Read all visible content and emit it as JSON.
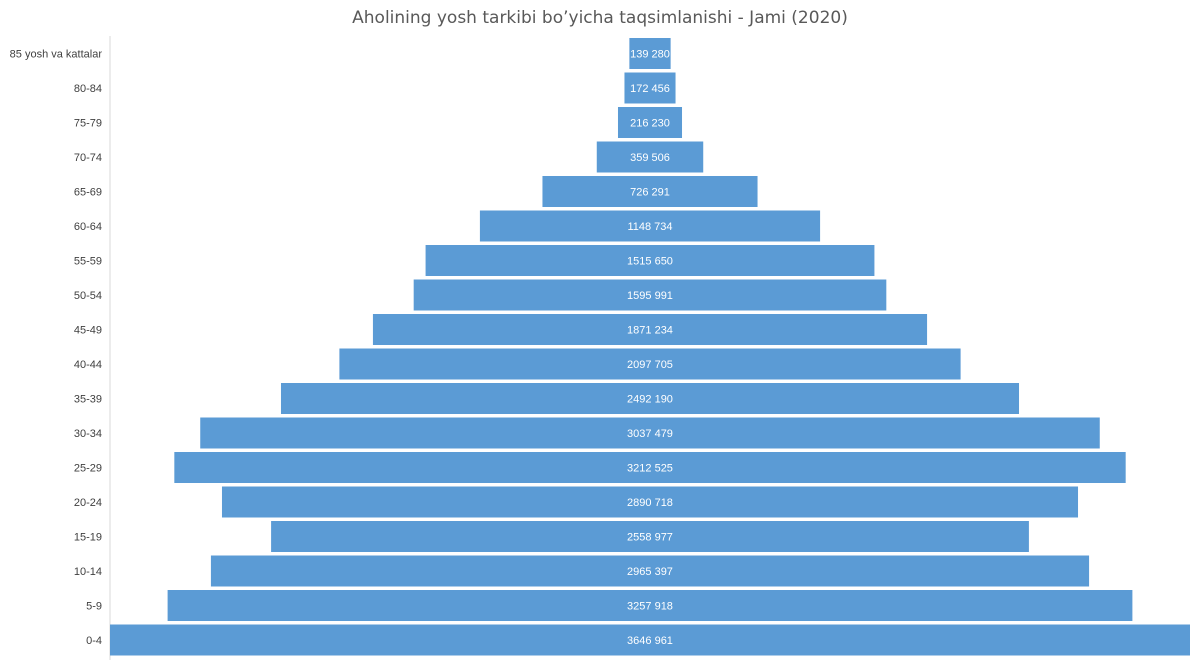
{
  "chart_data": {
    "type": "bar",
    "orientation": "horizontal-centered",
    "title": "Aholining yosh tarkibi bo’yicha taqsimlanishi - Jami (2020)",
    "categories": [
      "85 yosh va kattalar",
      "80-84",
      "75-79",
      "70-74",
      "65-69",
      "60-64",
      "55-59",
      "50-54",
      "45-49",
      "40-44",
      "35-39",
      "30-34",
      "25-29",
      "20-24",
      "15-19",
      "10-14",
      "5-9",
      "0-4"
    ],
    "values": [
      139280,
      172456,
      216230,
      359506,
      726291,
      1148734,
      1515650,
      1595991,
      1871234,
      2097705,
      2492190,
      3037479,
      3212525,
      2890718,
      2558977,
      2965397,
      3257918,
      3646961
    ],
    "value_labels": [
      "139 280",
      "172 456",
      "216 230",
      "359 506",
      "726 291",
      "1148 734",
      "1515 650",
      "1595 991",
      "1871 234",
      "2097 705",
      "2492 190",
      "3037 479",
      "3212 525",
      "2890 718",
      "2558 977",
      "2965 397",
      "3257 918",
      "3646 961"
    ],
    "bar_color": "#5b9bd5",
    "grid": false,
    "legend": "none"
  }
}
